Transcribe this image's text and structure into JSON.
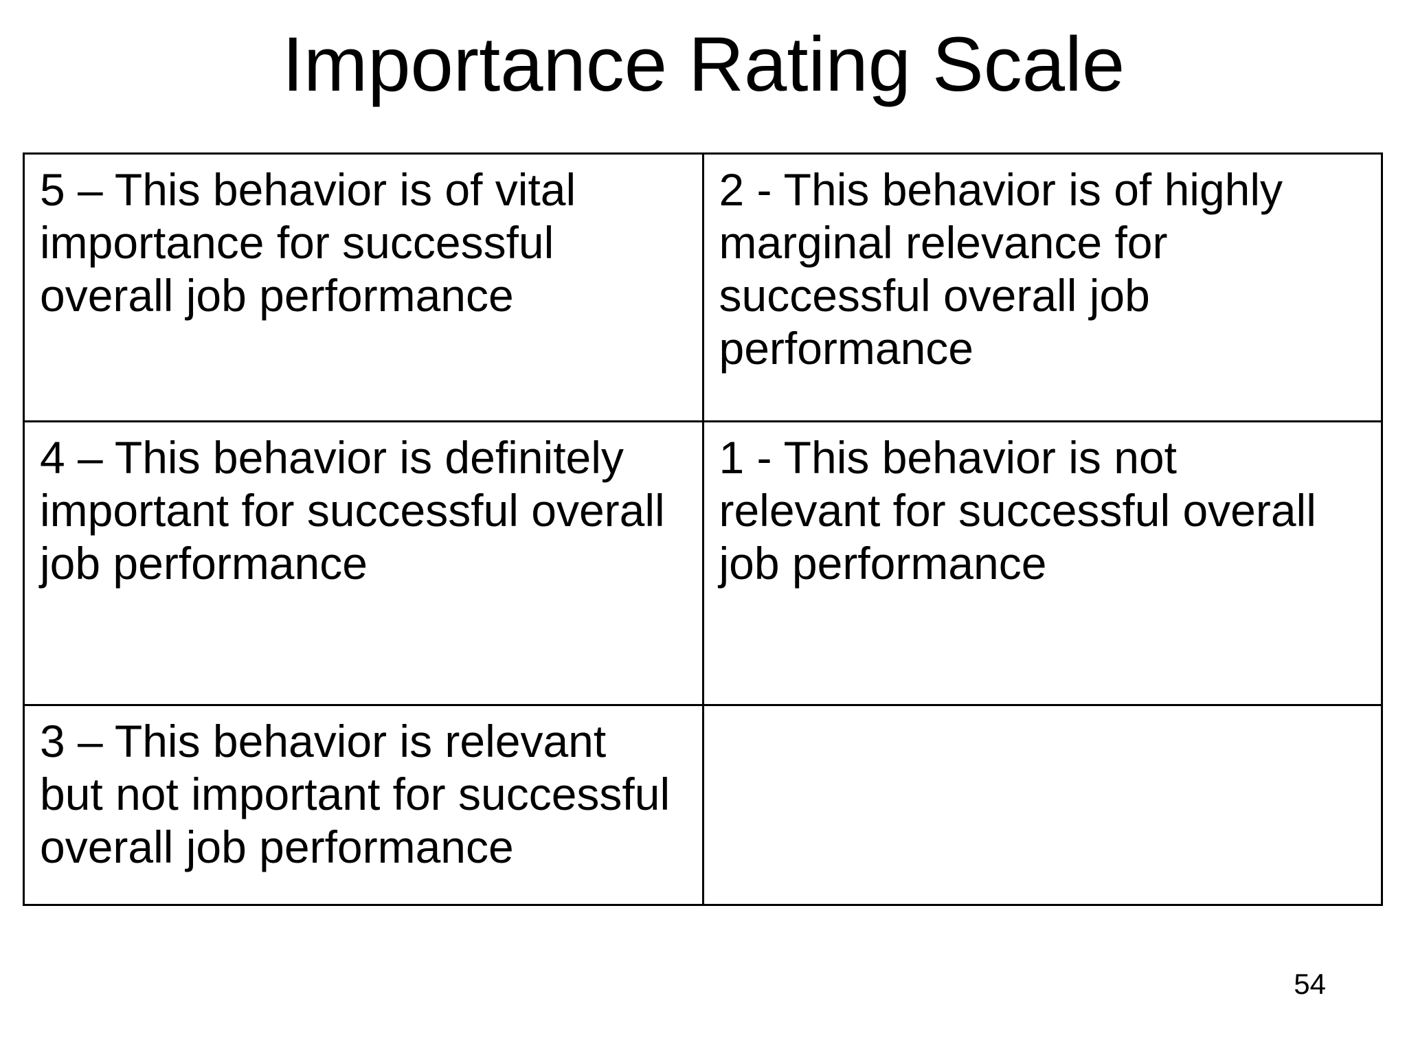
{
  "slide": {
    "title": "Importance Rating Scale",
    "page_number": "54"
  },
  "table": {
    "rows": [
      {
        "left": [
          "5 – This behavior is of vital",
          "importance for successful",
          "overall job performance"
        ],
        "right": [
          "2 - This behavior is of highly",
          "marginal relevance for",
          "successful overall job",
          "performance"
        ]
      },
      {
        "left": [
          "4 – This behavior is definitely",
          "important for successful overall",
          "job performance"
        ],
        "right": [
          "1 - This behavior is not",
          "relevant for successful overall",
          "job performance"
        ]
      },
      {
        "left": [
          "3 – This behavior is relevant",
          "but not important for successful",
          "overall job performance"
        ],
        "right": []
      }
    ]
  },
  "colors": {
    "background": "#ffffff",
    "text": "#000000",
    "border": "#000000"
  }
}
